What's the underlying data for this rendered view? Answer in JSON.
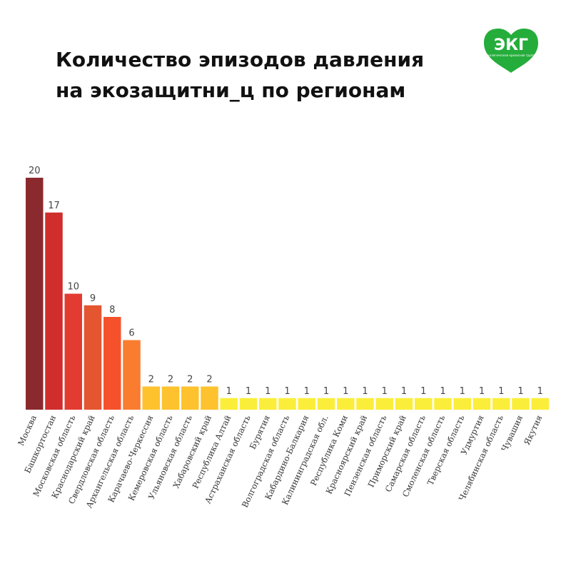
{
  "page": {
    "title_lines": [
      "Количество эпизодов давления",
      "на экозащитни_ц по регионам"
    ]
  },
  "logo": {
    "text": "ЭКГ",
    "subtitle": "Экологическая кризисная группа",
    "color": "#25ad3b"
  },
  "chart_data": {
    "type": "bar",
    "title": "Количество эпизодов давления на экозащитни_ц по регионам",
    "xlabel": "",
    "ylabel": "",
    "ylim": [
      0,
      20
    ],
    "grid": false,
    "legend": "none",
    "categories": [
      "Москва",
      "Башкортостан",
      "Московская область",
      "Краснодарский край",
      "Свердловская область",
      "Архангельская область",
      "Карачаево-Черкессия",
      "Кемеровская область",
      "Ульяновская область",
      "Хабаровский край",
      "Республика Алтай",
      "Астраханская область",
      "Бурятия",
      "Волгоградская область",
      "Кабардино-Балкария",
      "Калининградская обл.",
      "Республика Коми",
      "Красноярский край",
      "Пензенская область",
      "Приморский край",
      "Самарская область",
      "Смоленская область",
      "Тверская область",
      "Удмуртия",
      "Челябинская область",
      "Чувашия",
      "Якутия"
    ],
    "values": [
      20,
      17,
      10,
      9,
      8,
      6,
      2,
      2,
      2,
      2,
      1,
      1,
      1,
      1,
      1,
      1,
      1,
      1,
      1,
      1,
      1,
      1,
      1,
      1,
      1,
      1,
      1
    ],
    "colors": [
      "#8b2a2e",
      "#cf2e2c",
      "#e23b31",
      "#e35630",
      "#f5522c",
      "#fa7c2f",
      "#fdc22d",
      "#fdc22d",
      "#fdc22d",
      "#fdc22d",
      "#fbee3a",
      "#fbee3a",
      "#fbee3a",
      "#fbee3a",
      "#fbee3a",
      "#fbee3a",
      "#fbee3a",
      "#fbee3a",
      "#fbee3a",
      "#fbee3a",
      "#fbee3a",
      "#fbee3a",
      "#fbee3a",
      "#fbee3a",
      "#fbee3a",
      "#fbee3a",
      "#fbee3a"
    ]
  }
}
